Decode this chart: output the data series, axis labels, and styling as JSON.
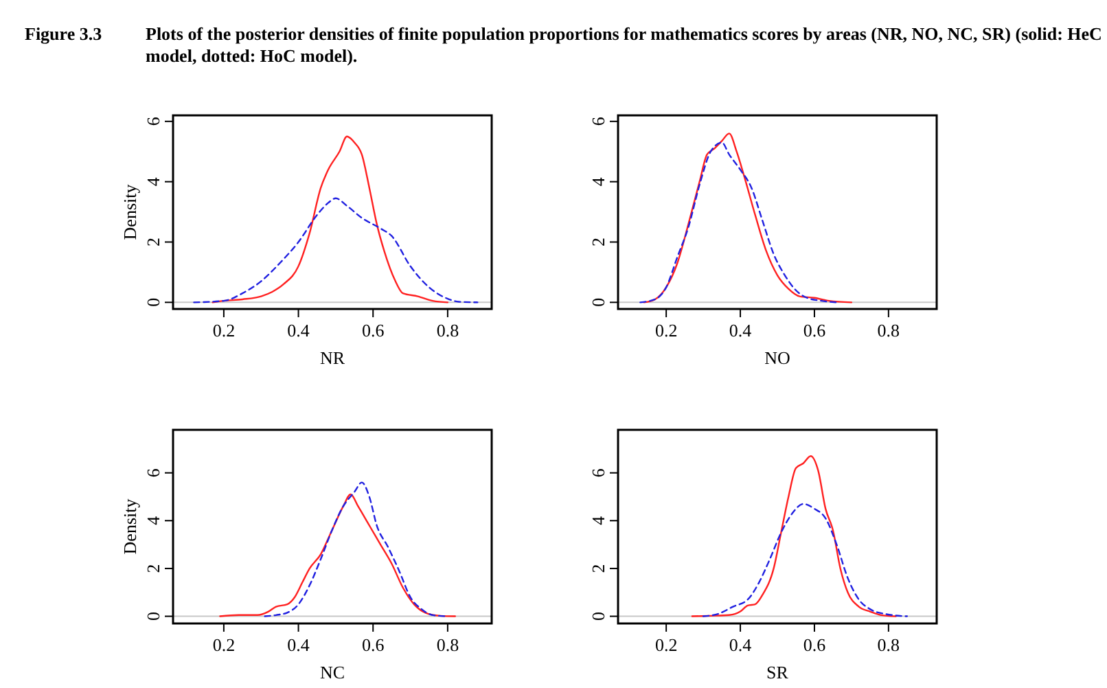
{
  "chart_data": [
    {
      "type": "line",
      "title": "Figure 3.3   Plots of the posterior densities of finite population proportions for mathematics scores by areas (NR, NO, NC, SR) (solid: HeC model, dotted: HoC model).",
      "xlabel": "NR",
      "ylabel": "Density",
      "xlim": [
        0.064,
        0.918
      ],
      "ylim": [
        -0.22,
        6.2
      ],
      "xticks": [
        0.2,
        0.4,
        0.6,
        0.8
      ],
      "yticks": [
        0,
        2,
        4,
        6
      ],
      "ref_lines": [
        {
          "axis": "y",
          "value": 0,
          "color": "#c8c8c8"
        }
      ],
      "series": [
        {
          "color": "#ff2020",
          "line_style": "solid",
          "x": [
            0.17,
            0.2,
            0.25,
            0.3,
            0.33,
            0.36,
            0.4,
            0.43,
            0.46,
            0.48,
            0.51,
            0.53,
            0.55,
            0.57,
            0.59,
            0.61,
            0.63,
            0.66,
            0.68,
            0.72,
            0.76,
            0.8
          ],
          "values": [
            0,
            0.05,
            0.1,
            0.2,
            0.35,
            0.6,
            1.2,
            2.3,
            3.8,
            4.4,
            5.0,
            5.5,
            5.3,
            4.9,
            3.8,
            2.6,
            1.7,
            0.7,
            0.3,
            0.2,
            0.05,
            0
          ]
        },
        {
          "color": "#2020e0",
          "line_style": "dashed",
          "x": [
            0.12,
            0.2,
            0.25,
            0.3,
            0.35,
            0.4,
            0.45,
            0.48,
            0.5,
            0.53,
            0.57,
            0.62,
            0.65,
            0.7,
            0.75,
            0.8,
            0.83,
            0.88
          ],
          "values": [
            0,
            0.05,
            0.3,
            0.7,
            1.3,
            2.0,
            2.9,
            3.3,
            3.45,
            3.2,
            2.8,
            2.45,
            2.2,
            1.2,
            0.5,
            0.12,
            0.02,
            0
          ]
        }
      ]
    },
    {
      "type": "line",
      "xlabel": "NO",
      "xlim": [
        0.07,
        0.93
      ],
      "ylim": [
        -0.22,
        6.2
      ],
      "xticks": [
        0.2,
        0.4,
        0.6,
        0.8
      ],
      "yticks": [
        0,
        2,
        4,
        6
      ],
      "ref_lines": [
        {
          "axis": "y",
          "value": 0,
          "color": "#c8c8c8"
        }
      ],
      "series": [
        {
          "color": "#ff2020",
          "line_style": "solid",
          "x": [
            0.14,
            0.17,
            0.2,
            0.23,
            0.26,
            0.29,
            0.31,
            0.33,
            0.35,
            0.37,
            0.39,
            0.41,
            0.44,
            0.47,
            0.5,
            0.53,
            0.56,
            0.6,
            0.64,
            0.7
          ],
          "values": [
            0,
            0.1,
            0.5,
            1.3,
            2.6,
            4.0,
            4.9,
            5.1,
            5.35,
            5.6,
            5.0,
            4.2,
            2.9,
            1.7,
            0.9,
            0.45,
            0.2,
            0.15,
            0.05,
            0
          ]
        },
        {
          "color": "#2020e0",
          "line_style": "dashed",
          "x": [
            0.13,
            0.17,
            0.2,
            0.23,
            0.26,
            0.29,
            0.32,
            0.35,
            0.37,
            0.4,
            0.43,
            0.46,
            0.49,
            0.52,
            0.55,
            0.58,
            0.62,
            0.66
          ],
          "values": [
            0,
            0.1,
            0.5,
            1.5,
            2.5,
            3.9,
            5.0,
            5.3,
            4.9,
            4.4,
            3.8,
            2.7,
            1.6,
            0.9,
            0.4,
            0.15,
            0.05,
            0
          ]
        }
      ]
    },
    {
      "type": "line",
      "xlabel": "NC",
      "ylabel": "Density",
      "xlim": [
        0.064,
        0.918
      ],
      "ylim": [
        -0.3,
        7.8
      ],
      "xticks": [
        0.2,
        0.4,
        0.6,
        0.8
      ],
      "yticks": [
        0,
        2,
        4,
        6
      ],
      "ref_lines": [
        {
          "axis": "y",
          "value": 0,
          "color": "#c8c8c8"
        }
      ],
      "series": [
        {
          "color": "#ff2020",
          "line_style": "solid",
          "x": [
            0.19,
            0.24,
            0.29,
            0.32,
            0.34,
            0.37,
            0.39,
            0.41,
            0.43,
            0.46,
            0.49,
            0.52,
            0.54,
            0.56,
            0.59,
            0.62,
            0.65,
            0.68,
            0.71,
            0.74,
            0.78,
            0.82
          ],
          "values": [
            0,
            0.05,
            0.05,
            0.2,
            0.4,
            0.5,
            0.8,
            1.4,
            2.0,
            2.6,
            3.6,
            4.6,
            5.1,
            4.6,
            3.8,
            3.0,
            2.2,
            1.2,
            0.5,
            0.15,
            0.02,
            0
          ]
        },
        {
          "color": "#2020e0",
          "line_style": "dashed",
          "x": [
            0.31,
            0.34,
            0.37,
            0.4,
            0.43,
            0.46,
            0.49,
            0.52,
            0.55,
            0.57,
            0.59,
            0.61,
            0.64,
            0.67,
            0.7,
            0.73,
            0.76,
            0.8
          ],
          "values": [
            0,
            0.05,
            0.15,
            0.5,
            1.3,
            2.4,
            3.6,
            4.6,
            5.2,
            5.6,
            5.0,
            3.8,
            2.9,
            1.9,
            0.8,
            0.3,
            0.05,
            0
          ]
        }
      ]
    },
    {
      "type": "line",
      "xlabel": "SR",
      "xlim": [
        0.07,
        0.93
      ],
      "ylim": [
        -0.3,
        7.8
      ],
      "xticks": [
        0.2,
        0.4,
        0.6,
        0.8
      ],
      "yticks": [
        0,
        2,
        4,
        6
      ],
      "ref_lines": [
        {
          "axis": "y",
          "value": 0,
          "color": "#c8c8c8"
        }
      ],
      "series": [
        {
          "color": "#ff2020",
          "line_style": "solid",
          "x": [
            0.27,
            0.32,
            0.37,
            0.4,
            0.42,
            0.44,
            0.46,
            0.49,
            0.51,
            0.53,
            0.55,
            0.57,
            0.59,
            0.61,
            0.63,
            0.65,
            0.67,
            0.69,
            0.72,
            0.75,
            0.78,
            0.82
          ],
          "values": [
            0,
            0.02,
            0.05,
            0.2,
            0.45,
            0.5,
            0.9,
            2.0,
            3.5,
            5.0,
            6.2,
            6.4,
            6.7,
            6.1,
            4.5,
            3.6,
            2.0,
            1.0,
            0.4,
            0.2,
            0.05,
            0
          ]
        },
        {
          "color": "#2020e0",
          "line_style": "dashed",
          "x": [
            0.3,
            0.34,
            0.38,
            0.42,
            0.45,
            0.48,
            0.51,
            0.54,
            0.57,
            0.6,
            0.63,
            0.66,
            0.69,
            0.72,
            0.75,
            0.79,
            0.85
          ],
          "values": [
            0,
            0.1,
            0.4,
            0.7,
            1.4,
            2.4,
            3.5,
            4.3,
            4.7,
            4.5,
            4.1,
            3.0,
            1.6,
            0.7,
            0.3,
            0.1,
            0
          ]
        }
      ]
    }
  ]
}
